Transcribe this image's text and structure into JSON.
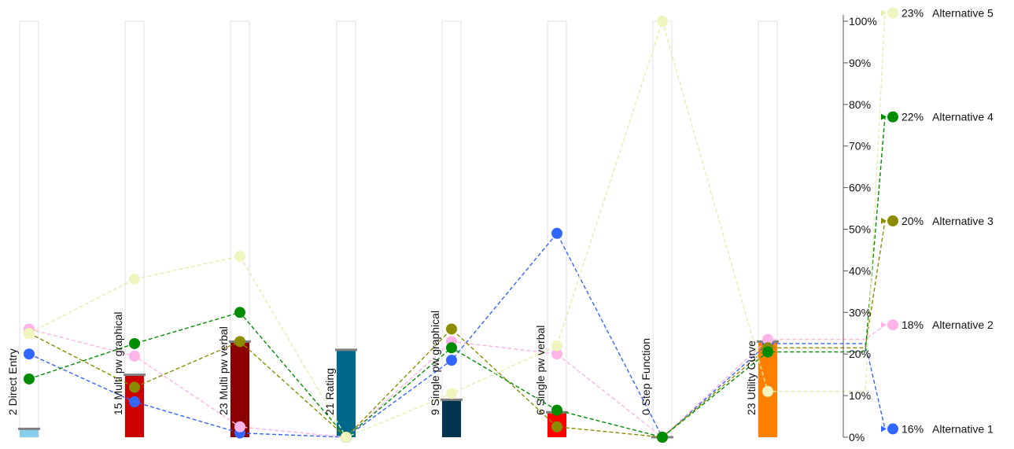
{
  "chart_data": {
    "type": "line",
    "criteria": [
      {
        "label": "2 Direct Entry",
        "weight": 2,
        "color": "#87ceeb"
      },
      {
        "label": "15 Multi pw graphical",
        "weight": 15,
        "color": "#cc0000"
      },
      {
        "label": "23 Multi pw verbal",
        "weight": 23,
        "color": "#8b0000"
      },
      {
        "label": "21 Rating",
        "weight": 21,
        "color": "#00688b"
      },
      {
        "label": "9 Single pw graphical",
        "weight": 9,
        "color": "#00334d"
      },
      {
        "label": "6 Single pw verbal",
        "weight": 6,
        "color": "#ff0000"
      },
      {
        "label": "0 Step Function",
        "weight": 0,
        "color": "#cccccc"
      },
      {
        "label": "23 Utility Curve",
        "weight": 23,
        "color": "#ff8000"
      }
    ],
    "series": [
      {
        "name": "Alternative 5",
        "total_label": "23%",
        "total": 102,
        "color": "#f0f5c0",
        "stroke": "#e4edaa",
        "values": [
          25,
          38,
          43.5,
          0,
          10.5,
          22,
          100,
          11
        ]
      },
      {
        "name": "Alternative 4",
        "total_label": "22%",
        "total": 77,
        "color": "#008c00",
        "stroke": "#008c00",
        "values": [
          14,
          22.5,
          30,
          0,
          21.5,
          6.5,
          0,
          20.5
        ]
      },
      {
        "name": "Alternative 3",
        "total_label": "20%",
        "total": 52,
        "color": "#8c8c00",
        "stroke": "#8c8c00",
        "values": [
          25,
          12,
          23,
          0,
          26,
          2.5,
          0,
          21.5
        ]
      },
      {
        "name": "Alternative 2",
        "total_label": "18%",
        "total": 27,
        "color": "#ffb3e6",
        "stroke": "#ffb3e6",
        "values": [
          26,
          19.5,
          2.5,
          0,
          23,
          20,
          0,
          23.5
        ]
      },
      {
        "name": "Alternative 1",
        "total_label": "16%",
        "total": 2,
        "color": "#3366ff",
        "stroke": "#3366ff",
        "values": [
          20,
          8.5,
          1,
          0,
          18.5,
          49,
          0,
          22.5
        ]
      }
    ],
    "right_axis": {
      "ticks": [
        "0%",
        "10%",
        "20%",
        "30%",
        "40%",
        "50%",
        "60%",
        "70%",
        "80%",
        "90%",
        "100%"
      ],
      "range": [
        0,
        100
      ]
    },
    "grid": false
  }
}
